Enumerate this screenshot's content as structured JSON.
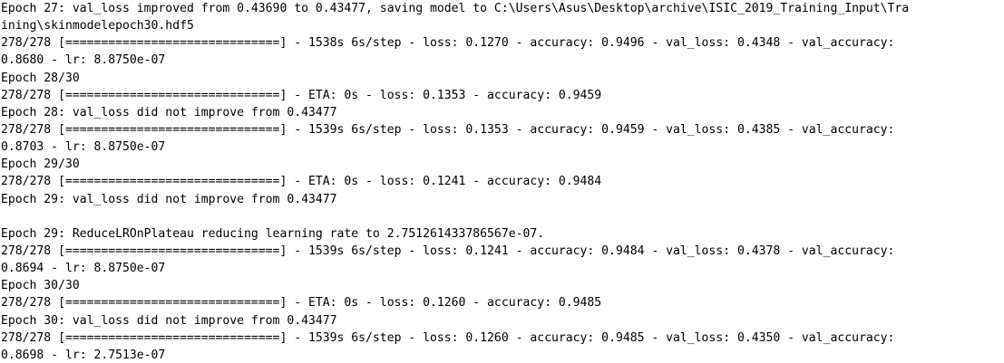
{
  "console": {
    "background_color": "#ffffff",
    "text_color": "#000000",
    "lines": [
      "Epoch 27: val_loss improved from 0.43690 to 0.43477, saving model to C:\\Users\\Asus\\Desktop\\archive\\ISIC_2019_Training_Input\\Tra",
      "ining\\skinmodelepoch30.hdf5",
      "278/278 [==============================] - 1538s 6s/step - loss: 0.1270 - accuracy: 0.9496 - val_loss: 0.4348 - val_accuracy:",
      "0.8680 - lr: 8.8750e-07",
      "Epoch 28/30",
      "278/278 [==============================] - ETA: 0s - loss: 0.1353 - accuracy: 0.9459",
      "Epoch 28: val_loss did not improve from 0.43477",
      "278/278 [==============================] - 1539s 6s/step - loss: 0.1353 - accuracy: 0.9459 - val_loss: 0.4385 - val_accuracy:",
      "0.8703 - lr: 8.8750e-07",
      "Epoch 29/30",
      "278/278 [==============================] - ETA: 0s - loss: 0.1241 - accuracy: 0.9484",
      "Epoch 29: val_loss did not improve from 0.43477",
      "",
      "Epoch 29: ReduceLROnPlateau reducing learning rate to 2.751261433786567e-07.",
      "278/278 [==============================] - 1539s 6s/step - loss: 0.1241 - accuracy: 0.9484 - val_loss: 0.4378 - val_accuracy:",
      "0.8694 - lr: 8.8750e-07",
      "Epoch 30/30",
      "278/278 [==============================] - ETA: 0s - loss: 0.1260 - accuracy: 0.9485",
      "Epoch 30: val_loss did not improve from 0.43477",
      "278/278 [==============================] - 1539s 6s/step - loss: 0.1260 - accuracy: 0.9485 - val_loss: 0.4350 - val_accuracy:",
      "0.8698 - lr: 2.7513e-07"
    ]
  }
}
